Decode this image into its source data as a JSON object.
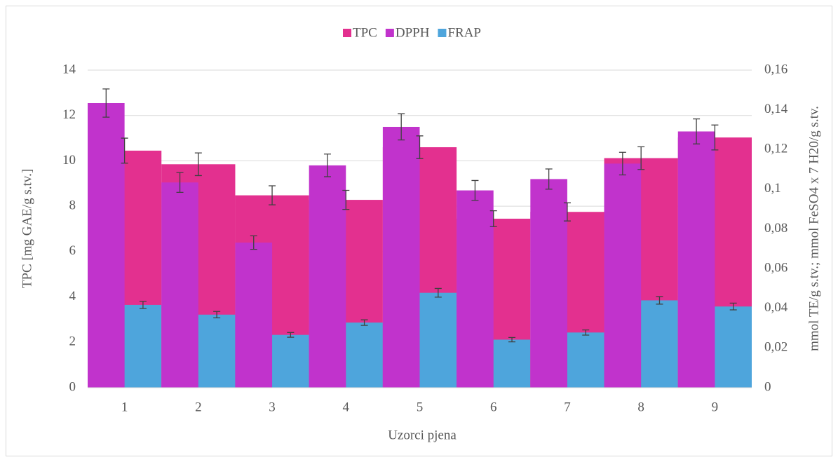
{
  "chart_data": {
    "type": "bar",
    "x_label": "Uzorci pjena",
    "y_label": "TPC [mg GAE/g s.tv.]",
    "y2_label": "mmol TE/g s.tv.; mmol FeSO4 x 7 H20/g s.tv.",
    "categories": [
      "1",
      "2",
      "3",
      "4",
      "5",
      "6",
      "7",
      "8",
      "9"
    ],
    "series": [
      {
        "name": "TPC",
        "color": "#e3308f",
        "axis": "y",
        "values": [
          10.45,
          9.85,
          8.48,
          8.28,
          10.6,
          7.45,
          7.75,
          10.12,
          11.03
        ],
        "errors": [
          0.55,
          0.5,
          0.42,
          0.42,
          0.5,
          0.35,
          0.4,
          0.5,
          0.55
        ]
      },
      {
        "name": "DPPH",
        "color": "#c133cc",
        "axis": "y2",
        "values": [
          0.1434,
          0.1034,
          0.0731,
          0.112,
          0.1314,
          0.0994,
          0.1051,
          0.1129,
          0.1291
        ],
        "errors": [
          0.0071,
          0.005,
          0.0034,
          0.0057,
          0.0066,
          0.005,
          0.0051,
          0.0057,
          0.0063
        ]
      },
      {
        "name": "FRAP",
        "color": "#4ea5dc",
        "axis": "y2",
        "values": [
          0.0417,
          0.0368,
          0.0266,
          0.0328,
          0.0478,
          0.0242,
          0.0278,
          0.044,
          0.0409
        ],
        "errors": [
          0.0018,
          0.0016,
          0.0012,
          0.0014,
          0.0022,
          0.0011,
          0.0013,
          0.0019,
          0.0017
        ]
      }
    ],
    "ylim": [
      0,
      14
    ],
    "yticks": [
      0,
      2,
      4,
      6,
      8,
      10,
      12,
      14
    ],
    "y2lim": [
      0,
      0.16
    ],
    "y2ticks": [
      0,
      {
        "value": 0.02,
        "label": "0,02"
      },
      {
        "value": 0.04,
        "label": "0,04"
      },
      {
        "value": 0.06,
        "label": "0,06"
      },
      {
        "value": 0.08,
        "label": "0,08"
      },
      {
        "value": 0.1,
        "label": "0,1"
      },
      {
        "value": 0.12,
        "label": "0,12"
      },
      {
        "value": 0.14,
        "label": "0,14"
      },
      {
        "value": 0.16,
        "label": "0,16"
      }
    ],
    "grid": true,
    "legend": "top"
  }
}
